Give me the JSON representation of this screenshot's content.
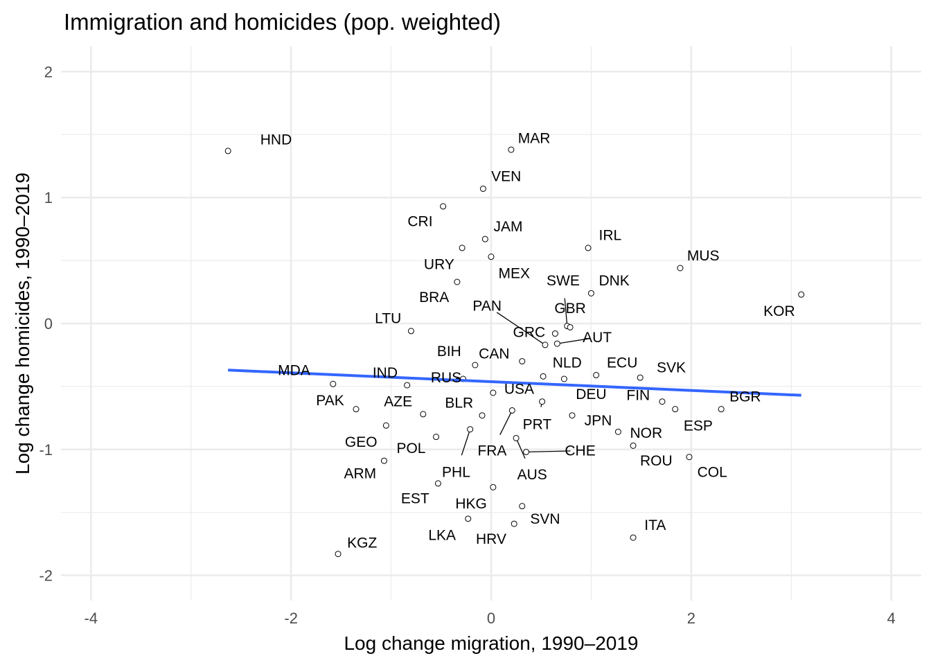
{
  "chart_data": {
    "type": "scatter",
    "title": "Immigration and homicides (pop. weighted)",
    "xlabel": "Log change migration, 1990–2019",
    "ylabel": "Log change homicides, 1990–2019",
    "xlim": [
      -4.3,
      4.3
    ],
    "ylim": [
      -2.2,
      2.2
    ],
    "x_ticks": [
      -4,
      -2,
      0,
      2,
      4
    ],
    "y_ticks": [
      -2,
      -1,
      0,
      1,
      2
    ],
    "x_tick_labels": [
      "-4",
      "-2",
      "0",
      "2",
      "4"
    ],
    "y_tick_labels": [
      "-2",
      "-1",
      "0",
      "1",
      "2"
    ],
    "x_minor": [
      -3,
      -1,
      1,
      3
    ],
    "y_minor": [
      -1.5,
      -0.5,
      0.5,
      1.5
    ],
    "trend_line": {
      "x": [
        -2.63,
        3.1
      ],
      "y": [
        -0.37,
        -0.57
      ],
      "color": "#3366ff"
    },
    "points": [
      {
        "label": "HND",
        "x": -2.63,
        "y": 1.37,
        "lx": -2.15,
        "ly": 1.46
      },
      {
        "label": "MAR",
        "x": 0.2,
        "y": 1.38,
        "lx": 0.43,
        "ly": 1.47
      },
      {
        "label": "VEN",
        "x": -0.08,
        "y": 1.07,
        "lx": 0.15,
        "ly": 1.17
      },
      {
        "label": "CRI",
        "x": -0.48,
        "y": 0.93,
        "lx": -0.71,
        "ly": 0.81
      },
      {
        "label": "JAM",
        "x": -0.06,
        "y": 0.67,
        "lx": 0.17,
        "ly": 0.77
      },
      {
        "label": "URY",
        "x": -0.29,
        "y": 0.6,
        "lx": -0.52,
        "ly": 0.47
      },
      {
        "label": "MEX",
        "x": 0.0,
        "y": 0.53,
        "lx": 0.23,
        "ly": 0.4
      },
      {
        "label": "IRL",
        "x": 0.97,
        "y": 0.6,
        "lx": 1.19,
        "ly": 0.7
      },
      {
        "label": "MUS",
        "x": 1.89,
        "y": 0.44,
        "lx": 2.12,
        "ly": 0.54
      },
      {
        "label": "BRA",
        "x": -0.34,
        "y": 0.33,
        "lx": -0.57,
        "ly": 0.21
      },
      {
        "label": "SWE",
        "x": 0.76,
        "y": -0.02,
        "lx": 0.72,
        "ly": 0.34,
        "seg": true
      },
      {
        "label": "DNK",
        "x": 1.0,
        "y": 0.24,
        "lx": 1.23,
        "ly": 0.34
      },
      {
        "label": "KOR",
        "x": 3.1,
        "y": 0.23,
        "lx": 2.88,
        "ly": 0.1
      },
      {
        "label": "PAN",
        "x": 0.54,
        "y": -0.17,
        "lx": -0.04,
        "ly": 0.14,
        "seg": true
      },
      {
        "label": "GBR",
        "x": 0.79,
        "y": -0.03,
        "lx": 0.79,
        "ly": 0.12
      },
      {
        "label": "LTU",
        "x": -0.8,
        "y": -0.06,
        "lx": -1.03,
        "ly": 0.04
      },
      {
        "label": "GRC",
        "x": 0.64,
        "y": -0.08,
        "lx": 0.38,
        "ly": -0.07
      },
      {
        "label": "AUT",
        "x": 0.66,
        "y": -0.16,
        "lx": 1.06,
        "ly": -0.11,
        "seg": true
      },
      {
        "label": "BIH",
        "x": -0.16,
        "y": -0.33,
        "lx": -0.42,
        "ly": -0.22
      },
      {
        "label": "CAN",
        "x": 0.31,
        "y": -0.3,
        "lx": 0.03,
        "ly": -0.24
      },
      {
        "label": "NLD",
        "x": 0.52,
        "y": -0.42,
        "lx": 0.76,
        "ly": -0.31
      },
      {
        "label": "ECU",
        "x": 1.05,
        "y": -0.41,
        "lx": 1.31,
        "ly": -0.31
      },
      {
        "label": "SVK",
        "x": 1.49,
        "y": -0.43,
        "lx": 1.8,
        "ly": -0.35
      },
      {
        "label": "MDA",
        "x": -1.58,
        "y": -0.48,
        "lx": -1.97,
        "ly": -0.37
      },
      {
        "label": "IND",
        "x": -0.84,
        "y": -0.49,
        "lx": -1.06,
        "ly": -0.39
      },
      {
        "label": "RUS",
        "x": -0.28,
        "y": -0.44,
        "lx": -0.45,
        "ly": -0.43,
        "seg": true
      },
      {
        "label": "USA",
        "x": 0.02,
        "y": -0.55,
        "lx": 0.28,
        "ly": -0.52
      },
      {
        "label": "DEU",
        "x": 0.73,
        "y": -0.44,
        "lx": 1.0,
        "ly": -0.56
      },
      {
        "label": "FIN",
        "x": 1.71,
        "y": -0.62,
        "lx": 1.47,
        "ly": -0.57
      },
      {
        "label": "BGR",
        "x": 2.3,
        "y": -0.68,
        "lx": 2.54,
        "ly": -0.58
      },
      {
        "label": "PAK",
        "x": -1.35,
        "y": -0.68,
        "lx": -1.61,
        "ly": -0.61
      },
      {
        "label": "AZE",
        "x": -0.68,
        "y": -0.72,
        "lx": -0.93,
        "ly": -0.62
      },
      {
        "label": "BLR",
        "x": -0.09,
        "y": -0.73,
        "lx": -0.32,
        "ly": -0.63
      },
      {
        "label": "PRT",
        "x": 0.51,
        "y": -0.62,
        "lx": 0.46,
        "ly": -0.8,
        "seg": true
      },
      {
        "label": "JPN",
        "x": 0.81,
        "y": -0.73,
        "lx": 1.07,
        "ly": -0.77
      },
      {
        "label": "ESP",
        "x": 1.84,
        "y": -0.68,
        "lx": 2.07,
        "ly": -0.81
      },
      {
        "label": "NOR",
        "x": 1.27,
        "y": -0.86,
        "lx": 1.55,
        "ly": -0.87
      },
      {
        "label": "GEO",
        "x": -1.05,
        "y": -0.81,
        "lx": -1.3,
        "ly": -0.94
      },
      {
        "label": "POL",
        "x": -0.55,
        "y": -0.9,
        "lx": -0.8,
        "ly": -0.99
      },
      {
        "label": "FRA",
        "x": 0.21,
        "y": -0.69,
        "lx": 0.01,
        "ly": -1.01,
        "seg": true
      },
      {
        "label": "CHE",
        "x": 0.35,
        "y": -1.02,
        "lx": 0.89,
        "ly": -1.01,
        "seg": true
      },
      {
        "label": "ROU",
        "x": 1.42,
        "y": -0.97,
        "lx": 1.65,
        "ly": -1.09
      },
      {
        "label": "COL",
        "x": 1.98,
        "y": -1.06,
        "lx": 2.21,
        "ly": -1.18
      },
      {
        "label": "ARM",
        "x": -1.07,
        "y": -1.09,
        "lx": -1.31,
        "ly": -1.19
      },
      {
        "label": "PHL",
        "x": -0.21,
        "y": -0.84,
        "lx": -0.35,
        "ly": -1.18,
        "seg": true
      },
      {
        "label": "AUS",
        "x": 0.25,
        "y": -0.91,
        "lx": 0.41,
        "ly": -1.2,
        "seg": true
      },
      {
        "label": "EST",
        "x": -0.53,
        "y": -1.27,
        "lx": -0.76,
        "ly": -1.39
      },
      {
        "label": "HKG",
        "x": 0.02,
        "y": -1.3,
        "lx": -0.2,
        "ly": -1.43
      },
      {
        "label": "SVN",
        "x": 0.31,
        "y": -1.45,
        "lx": 0.54,
        "ly": -1.55
      },
      {
        "label": "ITA",
        "x": 1.42,
        "y": -1.7,
        "lx": 1.64,
        "ly": -1.6
      },
      {
        "label": "LKA",
        "x": -0.23,
        "y": -1.55,
        "lx": -0.49,
        "ly": -1.68
      },
      {
        "label": "HRV",
        "x": 0.23,
        "y": -1.59,
        "lx": 0.0,
        "ly": -1.71
      },
      {
        "label": "KGZ",
        "x": -1.53,
        "y": -1.83,
        "lx": -1.29,
        "ly": -1.74
      }
    ]
  }
}
